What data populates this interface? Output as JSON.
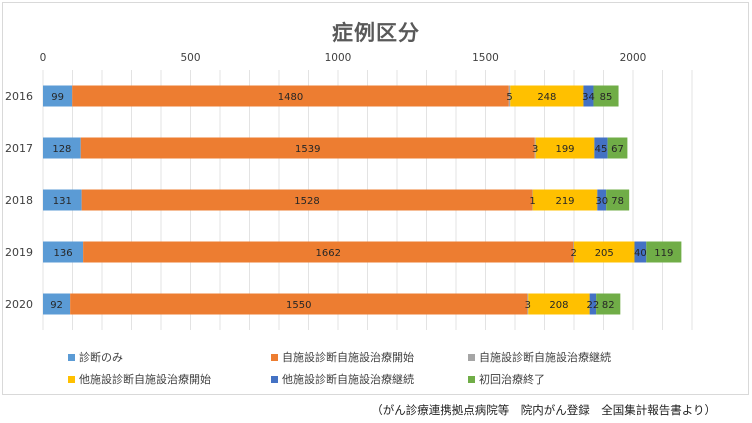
{
  "chart_data": {
    "type": "bar",
    "orientation": "horizontal",
    "stacked": true,
    "title": "症例区分",
    "categories": [
      "2016",
      "2017",
      "2018",
      "2019",
      "2020"
    ],
    "xlim": [
      0,
      2200
    ],
    "xticks": [
      0,
      500,
      1000,
      1500,
      2000
    ],
    "grid": true,
    "legend_position": "bottom",
    "series": [
      {
        "name": "診断のみ",
        "color": "#5b9bd5",
        "values": [
          99,
          128,
          131,
          136,
          92
        ]
      },
      {
        "name": "自施設診断自施設治療開始",
        "color": "#ed7d31",
        "values": [
          1480,
          1539,
          1528,
          1662,
          1550
        ]
      },
      {
        "name": "自施設診断自施設治療継続",
        "color": "#a5a5a5",
        "values": [
          5,
          3,
          1,
          2,
          3
        ]
      },
      {
        "name": "他施設診断自施設治療開始",
        "color": "#ffc000",
        "values": [
          248,
          199,
          219,
          205,
          208
        ]
      },
      {
        "name": "他施設診断自施設治療継続",
        "color": "#4472c4",
        "values": [
          34,
          45,
          30,
          40,
          22
        ]
      },
      {
        "name": "初回治療終了",
        "color": "#70ad47",
        "values": [
          85,
          67,
          78,
          119,
          82
        ]
      }
    ]
  },
  "source_note": "（がん診療連携拠点病院等　院内がん登録　全国集計報告書より）"
}
